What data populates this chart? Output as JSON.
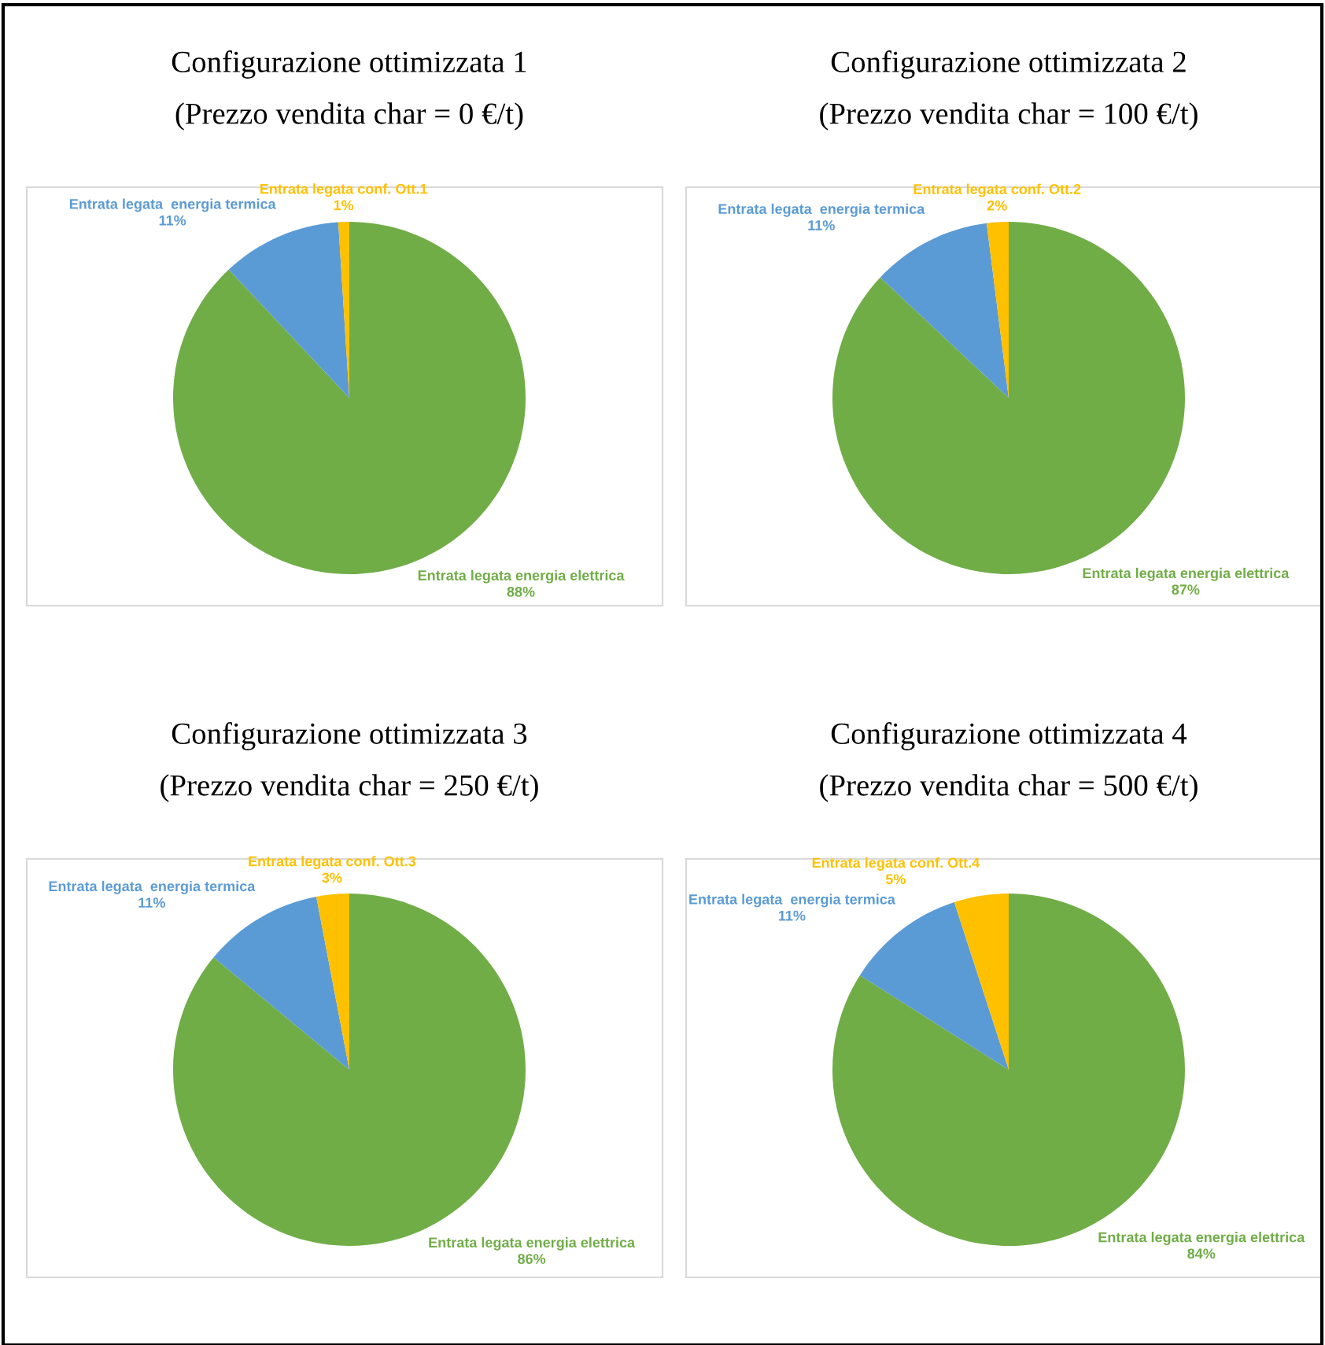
{
  "chart_data": [
    {
      "type": "pie",
      "title": "Configurazione ottimizzata 1",
      "subtitle": "(Prezzo vendita char = 0 €/t)",
      "categories": [
        "Entrata legata energia elettrica",
        "Entrata legata  energia termica",
        "Entrata legata conf. Ott.1"
      ],
      "values": [
        88,
        11,
        1
      ],
      "value_labels": [
        "88%",
        "11%",
        "1%"
      ],
      "colors": [
        "#70ad47",
        "#5b9bd5",
        "#ffc000"
      ]
    },
    {
      "type": "pie",
      "title": "Configurazione ottimizzata 2",
      "subtitle": "(Prezzo vendita char = 100 €/t)",
      "categories": [
        "Entrata legata energia elettrica",
        "Entrata legata  energia termica",
        "Entrata legata conf. Ott.2"
      ],
      "values": [
        87,
        11,
        2
      ],
      "value_labels": [
        "87%",
        "11%",
        "2%"
      ],
      "colors": [
        "#70ad47",
        "#5b9bd5",
        "#ffc000"
      ]
    },
    {
      "type": "pie",
      "title": "Configurazione ottimizzata 3",
      "subtitle": "(Prezzo vendita char = 250 €/t)",
      "categories": [
        "Entrata legata energia elettrica",
        "Entrata legata  energia termica",
        "Entrata legata conf. Ott.3"
      ],
      "values": [
        86,
        11,
        3
      ],
      "value_labels": [
        "86%",
        "11%",
        "3%"
      ],
      "colors": [
        "#70ad47",
        "#5b9bd5",
        "#ffc000"
      ]
    },
    {
      "type": "pie",
      "title": "Configurazione ottimizzata 4",
      "subtitle": "(Prezzo vendita char = 500 €/t)",
      "categories": [
        "Entrata legata energia elettrica",
        "Entrata legata  energia termica",
        "Entrata legata conf. Ott.4"
      ],
      "values": [
        84,
        11,
        5
      ],
      "value_labels": [
        "84%",
        "11%",
        "5%"
      ],
      "colors": [
        "#70ad47",
        "#5b9bd5",
        "#ffc000"
      ]
    }
  ]
}
